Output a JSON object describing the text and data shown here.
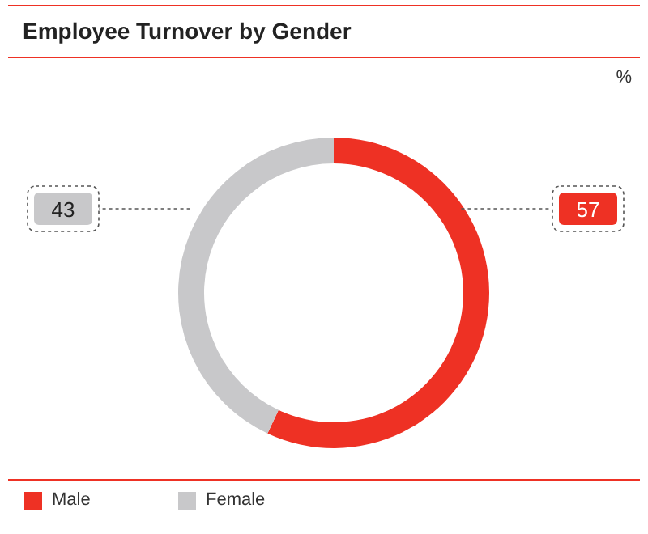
{
  "chart_data": {
    "type": "donut",
    "title": "Employee Turnover by Gender",
    "categories": [
      "Male",
      "Female"
    ],
    "values": [
      57,
      43
    ],
    "colors": [
      "#ee3124",
      "#c8c8ca"
    ],
    "data_labels": true,
    "legend": "bottom",
    "annotations": [
      "%"
    ]
  }
}
